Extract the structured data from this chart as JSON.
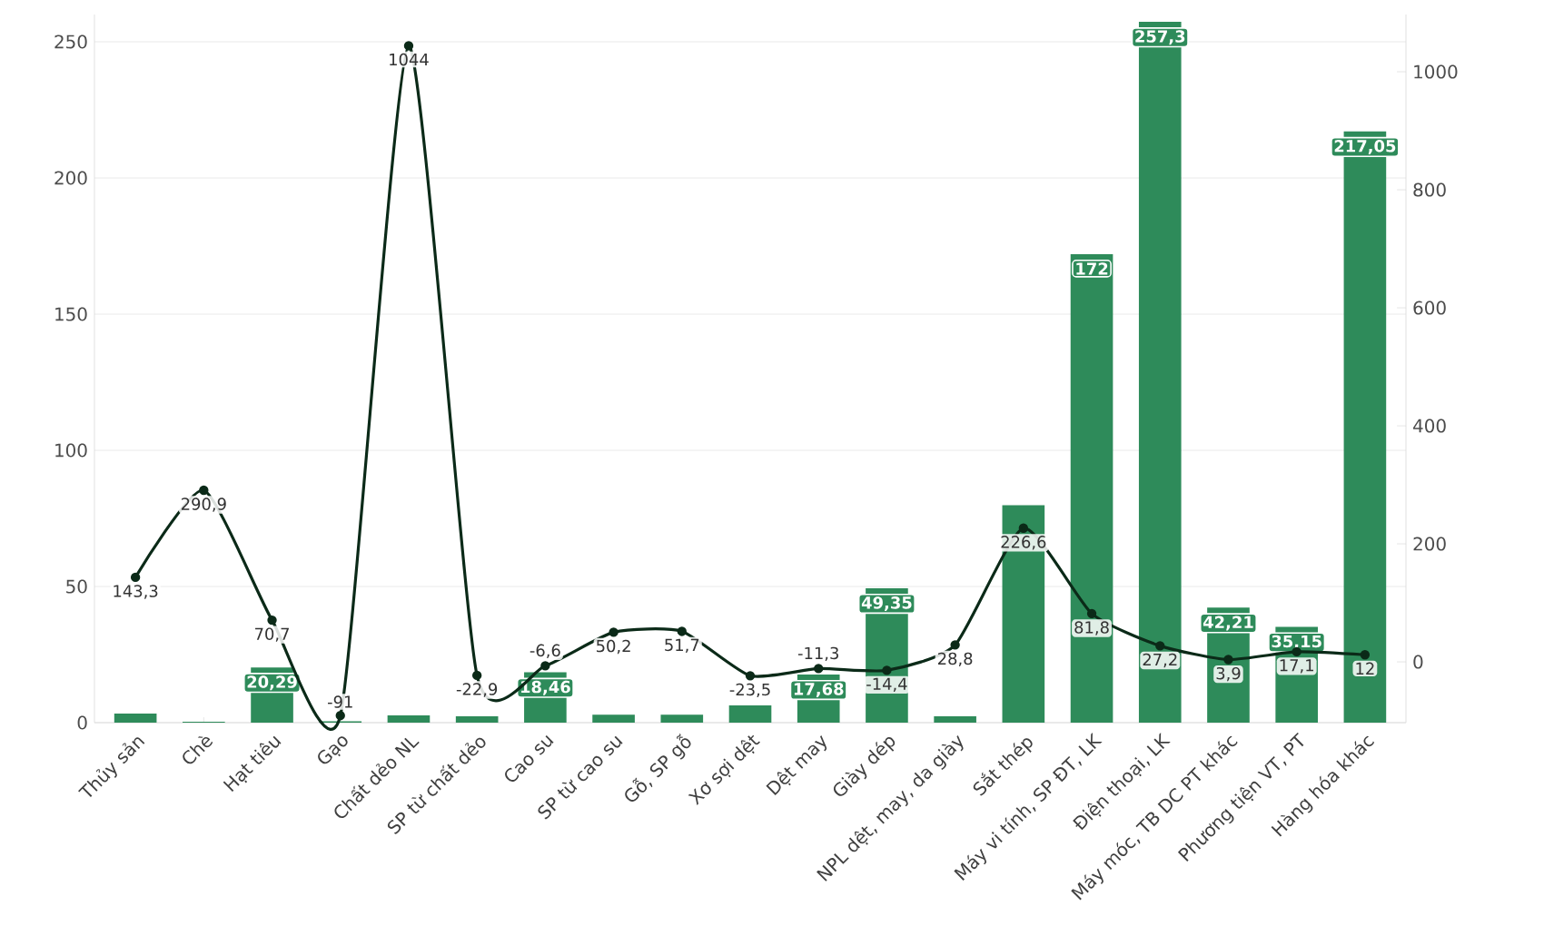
{
  "chart_data": {
    "type": "bar",
    "categories": [
      "Thủy sản",
      "Chè",
      "Hạt tiêu",
      "Gạo",
      "Chất dẻo NL",
      "SP từ chất dẻo",
      "Cao su",
      "SP từ cao su",
      "Gỗ, SP gỗ",
      "Xơ sợi dệt",
      "Dệt may",
      "Giày dép",
      "NPL dệt, may, da giày",
      "Sắt thép",
      "Máy vi tính, SP ĐT, LK",
      "Điện thoại, LK",
      "Máy móc, TB DC PT khác",
      "Phương tiện VT, PT",
      "Hàng hóa khác"
    ],
    "series": [
      {
        "color": "#2e8b5a",
        "values": [
          3.3,
          0.3,
          20.29,
          0.5,
          2.7,
          2.3,
          18.46,
          2.9,
          2.9,
          6.3,
          17.68,
          49.35,
          2.3,
          79.8,
          172,
          257.3,
          42.21,
          35.15,
          217.05
        ],
        "value_labels": [
          null,
          null,
          "20,29",
          null,
          null,
          null,
          "18,46",
          null,
          null,
          null,
          "17,68",
          "49,35",
          null,
          null,
          "172",
          "257,3",
          "42,21",
          "35,15",
          "217,05"
        ]
      },
      {
        "type": "line",
        "axis": "y2",
        "color": "#0b2a18",
        "marker": "circle",
        "values": [
          143.3,
          290.9,
          70.7,
          -91,
          1044,
          -22.9,
          -6.6,
          50.2,
          51.7,
          -23.5,
          -11.3,
          -14.4,
          28.8,
          226.6,
          81.8,
          27.2,
          3.9,
          17.1,
          12
        ],
        "value_labels": [
          "143,3",
          "290,9",
          "70,7",
          "-91",
          "1044",
          "-22,9",
          "-6,6",
          "50,2",
          "51,7",
          "-23,5",
          "-11,3",
          "-14,4",
          "28,8",
          "226,6",
          "81,8",
          "27,2",
          "3,9",
          "17,1",
          "12"
        ]
      }
    ],
    "ylim": [
      0,
      260
    ],
    "yticks": [
      0,
      50,
      100,
      150,
      200,
      250
    ],
    "y2lim": [
      -103,
      1097
    ],
    "y2ticks": [
      0,
      200,
      400,
      600,
      800,
      1000
    ],
    "grid": "y",
    "legend": false
  }
}
